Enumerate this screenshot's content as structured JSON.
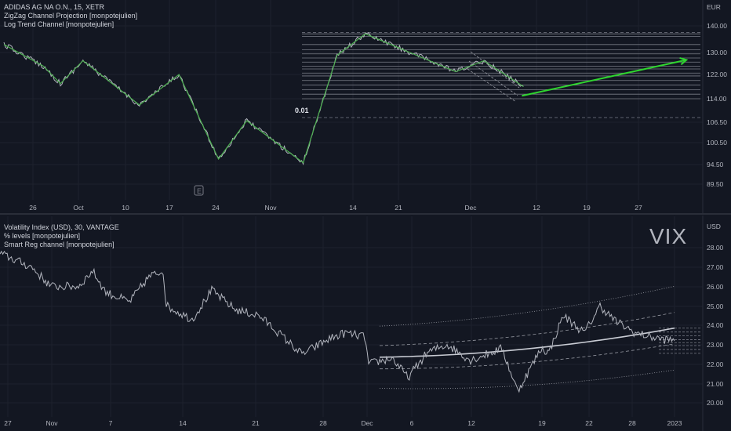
{
  "top_legend": {
    "symbol": "ADIDAS AG NA O.N., 15, XETR",
    "indicator1": "ZigZag Channel Projection [monpotejulien]",
    "indicator2": "Log Trend Channel [monpotejulien]"
  },
  "bottom_legend": {
    "symbol": "Volatility Index (USD), 30, VANTAGE",
    "indicator1": "% levels [monpotejulien]",
    "indicator2": "Smart Reg channel [monpotejulien]"
  },
  "watermark": "VIX",
  "annotation": "0.01",
  "colors": {
    "background": "#131722",
    "price": "#b2b5be",
    "zigzag": "#4caf50",
    "projection": "#2fd52f",
    "grid": "#2a2e39"
  },
  "chart_data": [
    {
      "type": "line",
      "unit": "EUR",
      "yticks": [
        "140.00",
        "130.00",
        "122.00",
        "114.00",
        "106.50",
        "100.50",
        "94.50",
        "89.50"
      ],
      "ylim": [
        86,
        145
      ],
      "xticks": [
        "26",
        "Oct",
        "10",
        "17",
        "24",
        "Nov",
        "14",
        "21",
        "Dec",
        "12",
        "19",
        "27"
      ],
      "zigzag": [
        {
          "x": 0,
          "y": 133
        },
        {
          "x": 7,
          "y": 125
        },
        {
          "x": 10,
          "y": 119
        },
        {
          "x": 14,
          "y": 127
        },
        {
          "x": 24,
          "y": 112
        },
        {
          "x": 31,
          "y": 122
        },
        {
          "x": 38,
          "y": 96
        },
        {
          "x": 43,
          "y": 107
        },
        {
          "x": 53,
          "y": 95
        },
        {
          "x": 59,
          "y": 129
        },
        {
          "x": 64,
          "y": 137
        },
        {
          "x": 80,
          "y": 123
        },
        {
          "x": 85,
          "y": 127
        },
        {
          "x": 92,
          "y": 118
        }
      ],
      "projection": [
        {
          "x": 92,
          "y": 116
        },
        {
          "x": 121,
          "y": 129
        }
      ],
      "channel_levels": [
        137,
        136,
        133,
        131,
        129.5,
        128,
        126.5,
        125,
        124,
        122.5,
        121.5,
        120,
        118.5,
        117,
        115.5,
        114
      ],
      "outer_levels": [
        142.5,
        108
      ]
    },
    {
      "type": "line",
      "unit": "USD",
      "yticks": [
        "28.00",
        "27.00",
        "26.00",
        "25.00",
        "24.00",
        "23.00",
        "22.00",
        "21.00",
        "20.00"
      ],
      "ylim": [
        19.7,
        28.4
      ],
      "xticks": [
        "27",
        "Nov",
        "7",
        "14",
        "21",
        "28",
        "Dec",
        "6",
        "12",
        "19",
        "22",
        "28",
        "2023"
      ],
      "percent_levels": [
        23.85,
        23.65,
        23.45,
        23.25,
        23.1,
        22.95,
        22.75,
        22.55
      ],
      "regression": {
        "start": 22.35,
        "end": 23.85
      }
    }
  ]
}
